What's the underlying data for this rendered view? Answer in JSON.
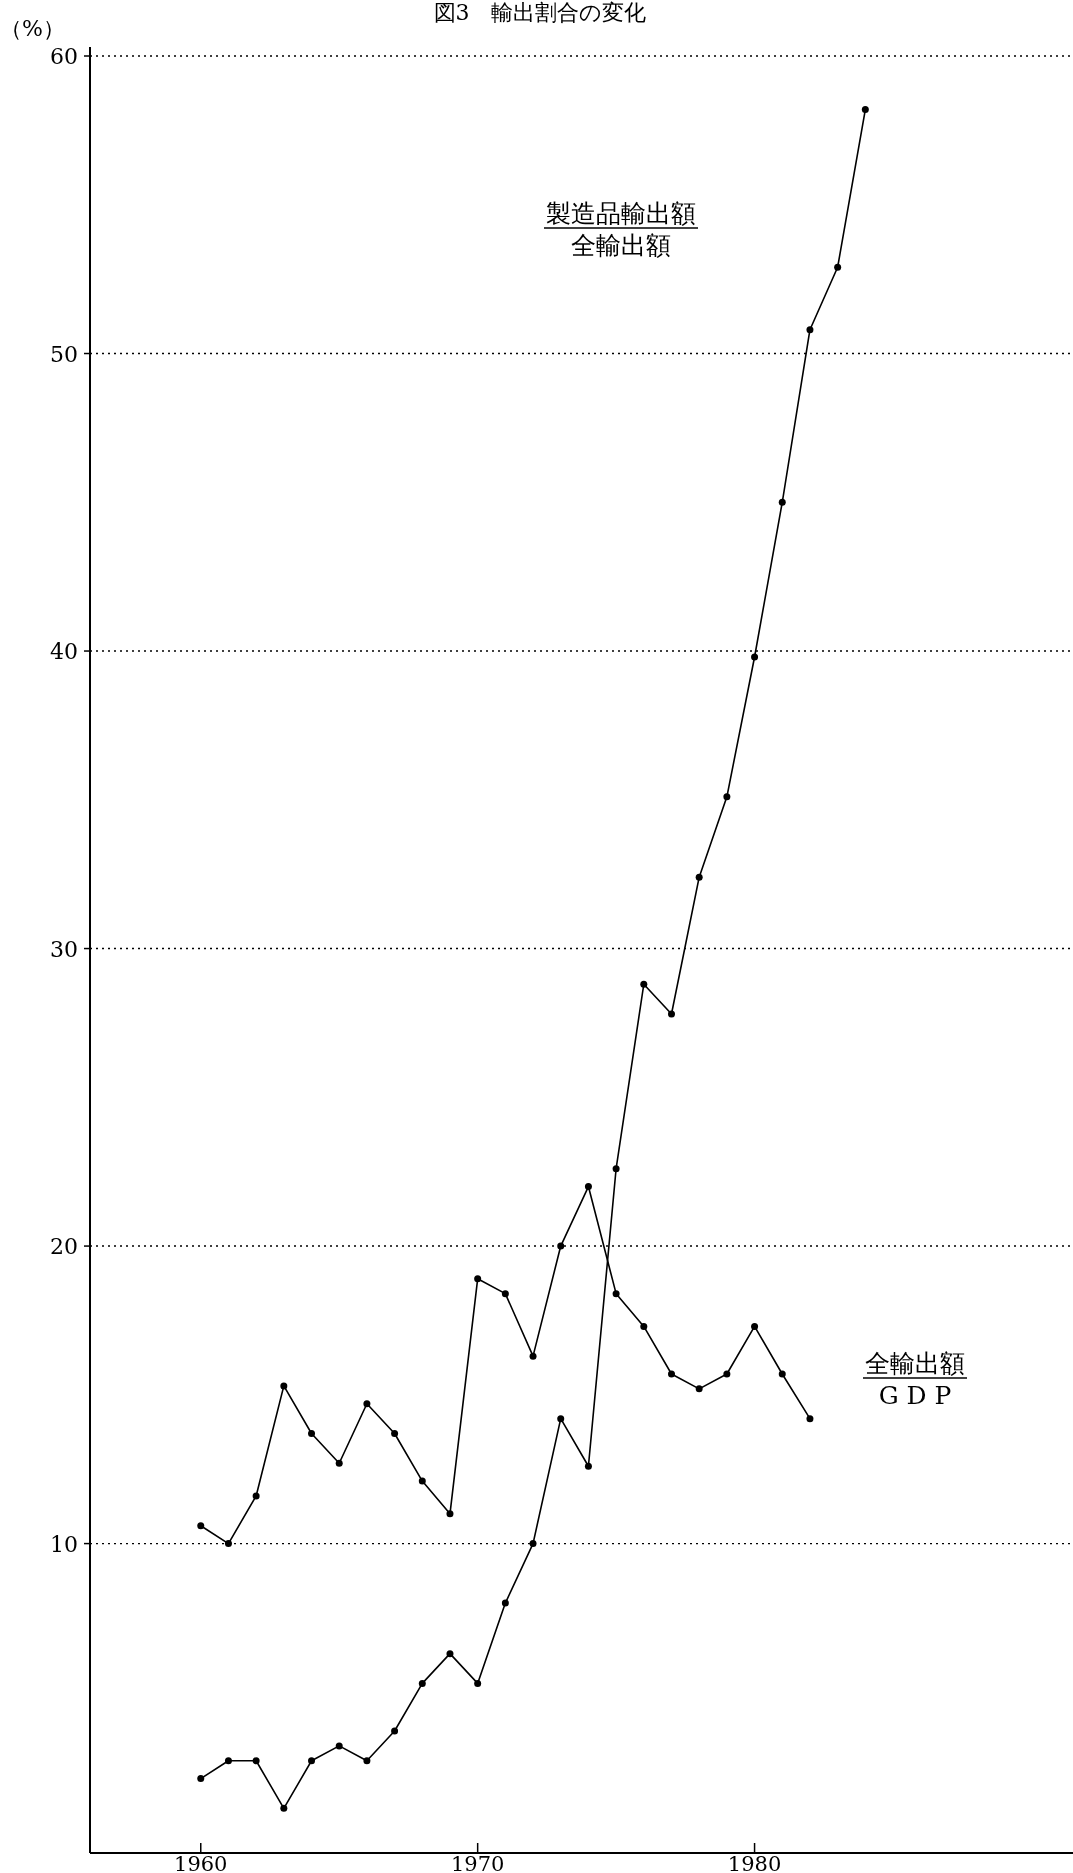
{
  "chart_data": {
    "type": "line",
    "title": "図3　輸出割合の変化",
    "ylabel": "（%）",
    "x": [
      1960,
      1961,
      1962,
      1963,
      1964,
      1965,
      1966,
      1967,
      1968,
      1969,
      1970,
      1971,
      1972,
      1973,
      1974,
      1975,
      1976,
      1977,
      1978,
      1979,
      1980,
      1981,
      1982,
      1983,
      1984
    ],
    "series": [
      {
        "color": "#000000",
        "values": [
          2.1,
          2.7,
          2.7,
          1.1,
          2.7,
          3.2,
          2.7,
          3.7,
          5.3,
          6.3,
          5.3,
          8.0,
          10.0,
          14.2,
          12.6,
          22.6,
          28.8,
          27.8,
          32.4,
          35.1,
          39.8,
          45.0,
          50.8,
          52.9,
          58.2
        ]
      },
      {
        "color": "#000000",
        "x": [
          1960,
          1961,
          1962,
          1963,
          1964,
          1965,
          1966,
          1967,
          1968,
          1969,
          1970,
          1971,
          1972,
          1973,
          1974,
          1975,
          1976,
          1977,
          1978,
          1979,
          1980,
          1981,
          1982
        ],
        "values": [
          10.6,
          10.0,
          11.6,
          15.3,
          13.7,
          12.7,
          14.7,
          13.7,
          12.1,
          11.0,
          18.9,
          18.4,
          16.3,
          20.0,
          22.0,
          18.4,
          17.3,
          15.7,
          15.2,
          15.7,
          17.3,
          15.7,
          14.2
        ]
      }
    ],
    "xlim": [
      1956,
      1991.5
    ],
    "ylim": [
      -0.4,
      60.3
    ],
    "xticks": [
      1960,
      1970,
      1980
    ],
    "yticks": [
      10,
      20,
      30,
      40,
      50,
      60
    ],
    "grid": "y",
    "marker": "circle",
    "line_style": "solid",
    "annotations": [
      "製造品輸出額",
      "全輸出額",
      "全輸出額",
      "G D P"
    ]
  }
}
